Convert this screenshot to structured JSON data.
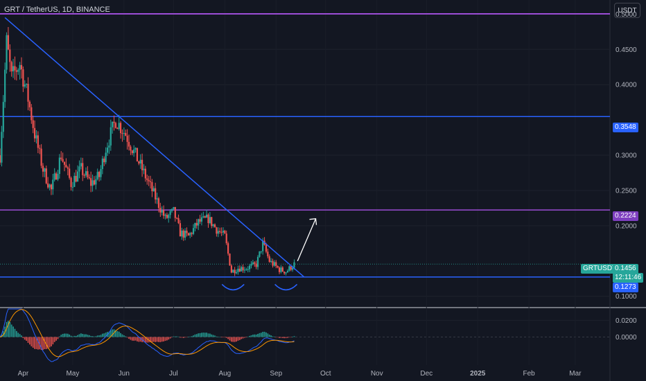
{
  "header": {
    "title": "GRT / TetherUS, 1D, BINANCE",
    "currency_button": "USDT"
  },
  "price_labels": {
    "symbol": "GRTUSDT",
    "last_price": "0.1456",
    "countdown": "12:11:46",
    "level_1": "0.3548",
    "level_2": "0.2224",
    "level_3": "0.1273"
  },
  "colors": {
    "background": "#131722",
    "up": "#26a69a",
    "down": "#ef5350",
    "blue_line": "#2962ff",
    "purple_line": "#9c4dd6",
    "macd": "#2962ff",
    "signal": "#ff9800"
  },
  "chart_data": [
    {
      "type": "candlestick",
      "title": "GRT / TetherUS, 1D, BINANCE",
      "y_scale": "linear",
      "ylim": [
        0.085,
        0.52
      ],
      "y_ticks": [
        "0.5000",
        "0.4500",
        "0.4000",
        "0.3548",
        "0.3000",
        "0.2500",
        "0.2224",
        "0.2000",
        "0.1456",
        "0.1273",
        "0.1000"
      ],
      "x_ticks": [
        "Apr",
        "May",
        "Jun",
        "Jul",
        "Aug",
        "Sep",
        "Oct",
        "Nov",
        "Dec",
        "2025",
        "Feb",
        "Mar"
      ],
      "x_range": [
        "2024-03-18",
        "2025-03-22"
      ],
      "close_path": [
        [
          "2024-03-18",
          0.3
        ],
        [
          "2024-03-22",
          0.46
        ],
        [
          "2024-03-25",
          0.41
        ],
        [
          "2024-03-30",
          0.43
        ],
        [
          "2024-04-04",
          0.38
        ],
        [
          "2024-04-08",
          0.33
        ],
        [
          "2024-04-13",
          0.28
        ],
        [
          "2024-04-18",
          0.25
        ],
        [
          "2024-04-24",
          0.3
        ],
        [
          "2024-04-30",
          0.26
        ],
        [
          "2024-05-06",
          0.28
        ],
        [
          "2024-05-12",
          0.26
        ],
        [
          "2024-05-17",
          0.27
        ],
        [
          "2024-05-21",
          0.31
        ],
        [
          "2024-05-27",
          0.35
        ],
        [
          "2024-06-02",
          0.33
        ],
        [
          "2024-06-08",
          0.3
        ],
        [
          "2024-06-14",
          0.27
        ],
        [
          "2024-06-20",
          0.24
        ],
        [
          "2024-06-26",
          0.21
        ],
        [
          "2024-07-01",
          0.22
        ],
        [
          "2024-07-05",
          0.19
        ],
        [
          "2024-07-10",
          0.185
        ],
        [
          "2024-07-16",
          0.205
        ],
        [
          "2024-07-22",
          0.21
        ],
        [
          "2024-07-27",
          0.195
        ],
        [
          "2024-08-01",
          0.185
        ],
        [
          "2024-08-05",
          0.135
        ],
        [
          "2024-08-09",
          0.14
        ],
        [
          "2024-08-14",
          0.14
        ],
        [
          "2024-08-20",
          0.145
        ],
        [
          "2024-08-24",
          0.175
        ],
        [
          "2024-08-28",
          0.15
        ],
        [
          "2024-09-03",
          0.138
        ],
        [
          "2024-09-07",
          0.135
        ],
        [
          "2024-09-12",
          0.1456
        ]
      ],
      "horizontal_lines": [
        {
          "value": 0.3548,
          "color": "#2962ff"
        },
        {
          "value": 0.2224,
          "color": "#9c4dd6"
        },
        {
          "value": 0.1273,
          "color": "#2962ff"
        }
      ],
      "trendline": {
        "from": [
          "2024-03-21",
          0.495
        ],
        "to": [
          "2024-09-18",
          0.1273
        ]
      }
    },
    {
      "type": "line",
      "title": "",
      "ylim": [
        -0.0335,
        0.0335
      ],
      "y_ticks": [
        "0.0200",
        "0.0000"
      ]
    }
  ]
}
